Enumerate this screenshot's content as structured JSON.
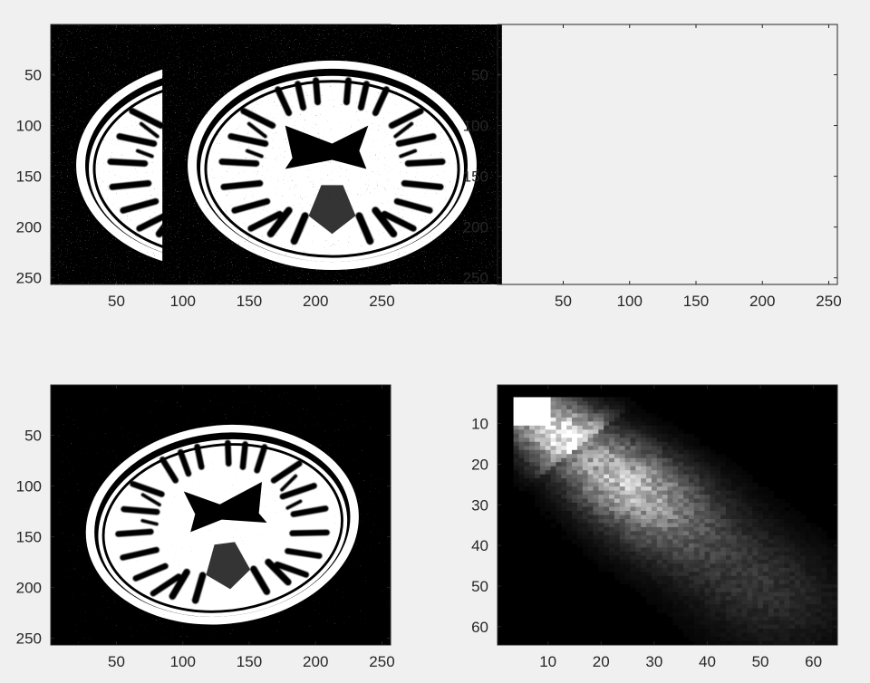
{
  "figure": {
    "background": "#f0f0f0",
    "axes_color": "#262626",
    "image_black": "#000000",
    "image_white": "#ffffff"
  },
  "chart_data": [
    {
      "type": "heatmap",
      "content": "binarized noisy axial brain MRI slice",
      "xlim": [
        0.5,
        256.5
      ],
      "ylim": [
        0.5,
        256.5
      ],
      "y_direction": "reverse",
      "xticks": [
        50,
        100,
        150,
        200,
        250
      ],
      "yticks": [
        50,
        100,
        150,
        200,
        250
      ],
      "xtick_labels": [
        "50",
        "100",
        "150",
        "200",
        "250"
      ],
      "ytick_labels": [
        "50",
        "100",
        "150",
        "200",
        "250"
      ],
      "rotation_deg": 0,
      "colormap": "gray",
      "title": "",
      "xlabel": "",
      "ylabel": ""
    },
    {
      "type": "heatmap",
      "content": "binarized noisy axial brain MRI slice (second image)",
      "xlim": [
        0.5,
        256.5
      ],
      "ylim": [
        0.5,
        256.5
      ],
      "y_direction": "reverse",
      "xticks": [
        50,
        100,
        150,
        200,
        250
      ],
      "yticks": [
        50,
        100,
        150,
        200,
        250
      ],
      "xtick_labels": [
        "50",
        "100",
        "150",
        "200",
        "250"
      ],
      "ytick_labels": [
        "50",
        "100",
        "150",
        "200",
        "250"
      ],
      "rotation_deg": 0,
      "colormap": "gray",
      "title": "",
      "xlabel": "",
      "ylabel": ""
    },
    {
      "type": "heatmap",
      "content": "binarized noisy brain MRI slice, rotated with black fill at corners",
      "xlim": [
        0.5,
        256.5
      ],
      "ylim": [
        0.5,
        256.5
      ],
      "y_direction": "reverse",
      "xticks": [
        50,
        100,
        150,
        200,
        250
      ],
      "yticks": [
        50,
        100,
        150,
        200,
        250
      ],
      "xtick_labels": [
        "50",
        "100",
        "150",
        "200",
        "250"
      ],
      "ytick_labels": [
        "50",
        "100",
        "150",
        "200",
        "250"
      ],
      "rotation_deg": -7,
      "colormap": "gray",
      "title": "",
      "xlabel": "",
      "ylabel": ""
    },
    {
      "type": "heatmap",
      "content": "joint intensity histogram (64 x 64 bins)",
      "xlim": [
        0.5,
        64.5
      ],
      "ylim": [
        0.5,
        64.5
      ],
      "y_direction": "reverse",
      "xticks": [
        10,
        20,
        30,
        40,
        50,
        60
      ],
      "yticks": [
        10,
        20,
        30,
        40,
        50,
        60
      ],
      "xtick_labels": [
        "10",
        "20",
        "30",
        "40",
        "50",
        "60"
      ],
      "ytick_labels": [
        "10",
        "20",
        "30",
        "40",
        "50",
        "60"
      ],
      "nonzero_region": {
        "col_range": [
          4,
          64
        ],
        "row_range": [
          4,
          64
        ]
      },
      "saturated_block": {
        "cols": [
          4,
          10
        ],
        "rows": [
          4,
          10
        ]
      },
      "peak": {
        "col": 24,
        "row": 24
      },
      "colormap": "gray",
      "title": "",
      "xlabel": "",
      "ylabel": ""
    }
  ]
}
